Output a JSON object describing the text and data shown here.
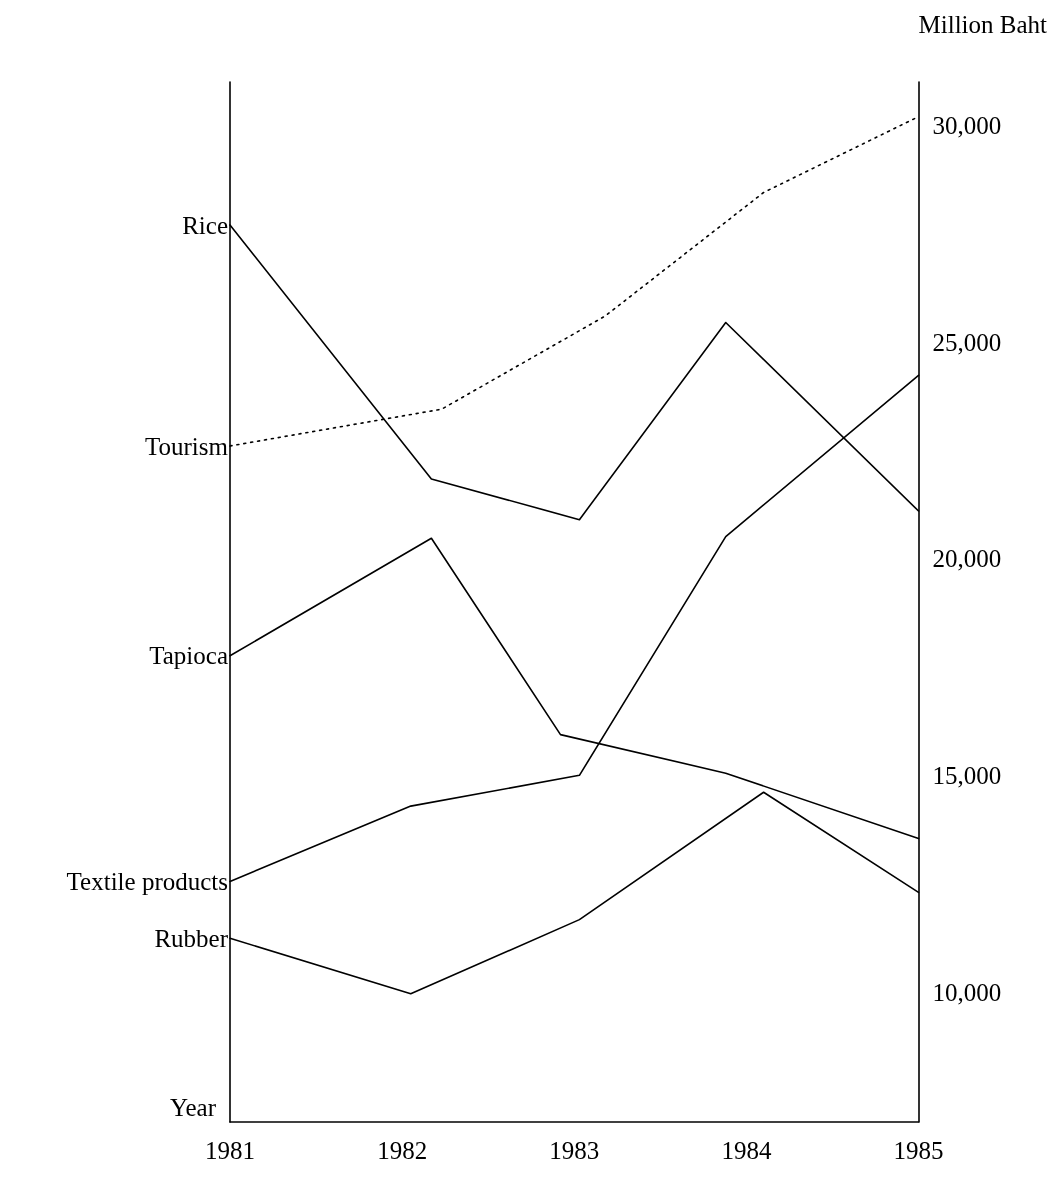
{
  "chart_data": {
    "type": "line",
    "xlabel": "Year",
    "ylabel": "Million Baht",
    "xlim": [
      1981,
      1985
    ],
    "xticks": [
      1981,
      1982,
      1983,
      1984,
      1985
    ],
    "ylim": [
      7000,
      31000
    ],
    "yticks": [
      {
        "value": 10000,
        "label": "10,000"
      },
      {
        "value": 15000,
        "label": "15,000"
      },
      {
        "value": 20000,
        "label": "20,000"
      },
      {
        "value": 25000,
        "label": "25,000"
      },
      {
        "value": 30000,
        "label": "30,000"
      }
    ],
    "grid": false,
    "marker": "none",
    "series": [
      {
        "name": "Rice",
        "color": "#000000",
        "line_style": "solid",
        "x": [
          1981,
          1982.17,
          1983.03,
          1983.88,
          1985
        ],
        "values": [
          27700,
          21840,
          20900,
          25450,
          21100
        ]
      },
      {
        "name": "Tourism",
        "color": "#000000",
        "line_style": "dotted",
        "x": [
          1981,
          1982.23,
          1983.18,
          1984.1,
          1985
        ],
        "values": [
          22600,
          23450,
          25600,
          28450,
          30200
        ]
      },
      {
        "name": "Tapioca",
        "color": "#000000",
        "line_style": "solid",
        "x": [
          1981,
          1982.17,
          1982.92,
          1983.88,
          1985
        ],
        "values": [
          17760,
          20470,
          15940,
          15050,
          13540
        ]
      },
      {
        "name": "Textile products",
        "color": "#000000",
        "line_style": "solid",
        "x": [
          1981,
          1982.05,
          1983.03,
          1983.88,
          1985
        ],
        "values": [
          12550,
          14290,
          15000,
          20510,
          24230
        ]
      },
      {
        "name": "Rubber",
        "color": "#000000",
        "line_style": "solid",
        "x": [
          1981,
          1982.05,
          1983.03,
          1984.1,
          1985
        ],
        "values": [
          11240,
          9960,
          11670,
          14610,
          12300
        ]
      }
    ]
  }
}
